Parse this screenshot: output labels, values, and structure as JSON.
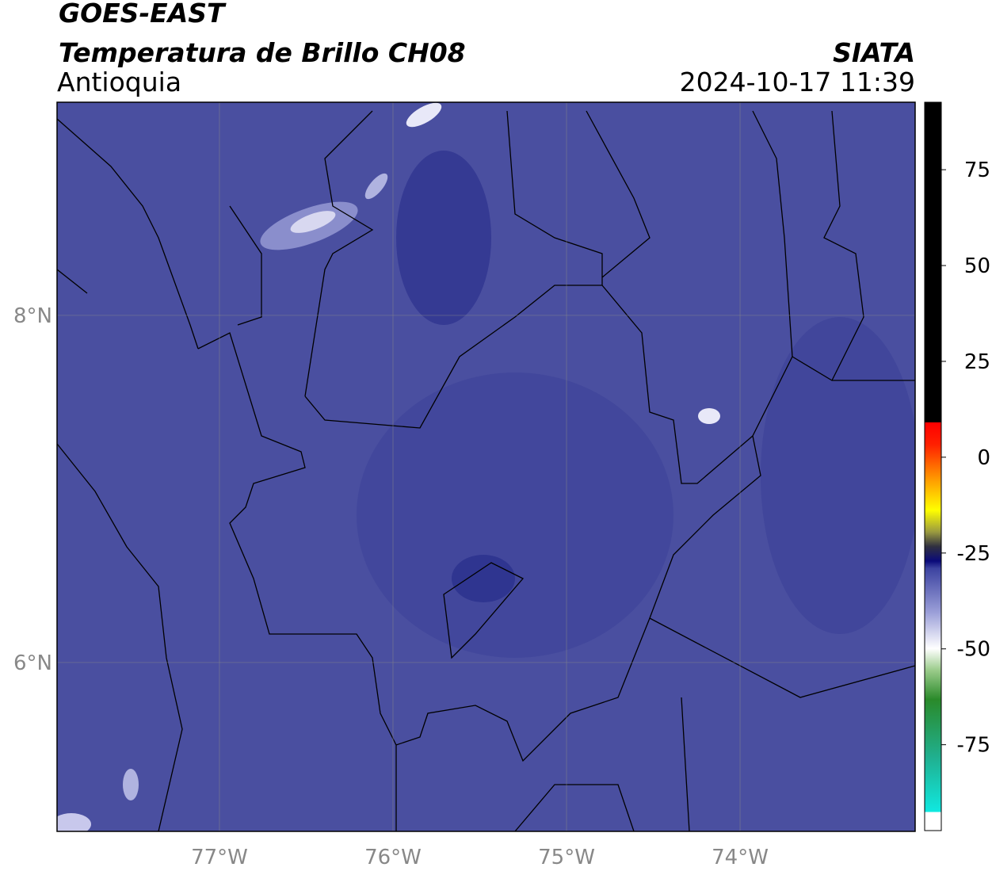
{
  "map": {
    "satellite": "GOES-EAST",
    "product": "Temperatura de Brillo CH08",
    "region": "Antioquia",
    "source": "SIATA",
    "timestamp": "2024-10-17 11:39",
    "xlim": [
      -77.936,
      -72.991
    ],
    "ylim": [
      5.027,
      9.228
    ],
    "xticks": [
      {
        "value": -77,
        "label": "77°W"
      },
      {
        "value": -76,
        "label": "76°W"
      },
      {
        "value": -75,
        "label": "75°W"
      },
      {
        "value": -74,
        "label": "74°W"
      }
    ],
    "yticks": [
      {
        "value": 8,
        "label": "8°N"
      },
      {
        "value": 6,
        "label": "6°N"
      }
    ],
    "colorbar": {
      "lim": [
        -97.4,
        92.6
      ],
      "ticks": [
        75,
        50,
        25,
        0,
        -25,
        -50,
        -75
      ]
    }
  }
}
